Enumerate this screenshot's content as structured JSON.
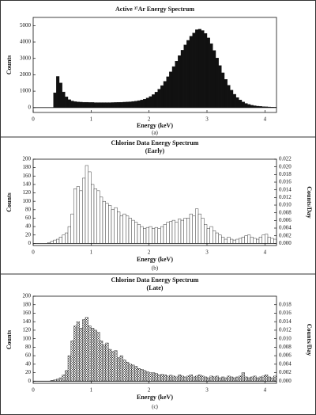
{
  "chart_data": [
    {
      "type": "histogram",
      "title": "Active ³⁷Ar Energy Spectrum",
      "caption": "(a)",
      "xlabel": "Energy (keV)",
      "ylabel": "Counts",
      "color": "#111111",
      "bins": [
        0.3,
        0.35,
        0.4,
        0.45,
        0.5,
        0.55,
        0.6,
        0.65,
        0.7,
        0.75,
        0.8,
        0.85,
        0.9,
        0.95,
        1,
        1.05,
        1.1,
        1.15,
        1.2,
        1.25,
        1.3,
        1.35,
        1.4,
        1.45,
        1.5,
        1.55,
        1.6,
        1.65,
        1.7,
        1.75,
        1.8,
        1.85,
        1.9,
        1.95,
        2,
        2.05,
        2.1,
        2.15,
        2.2,
        2.25,
        2.3,
        2.35,
        2.4,
        2.45,
        2.5,
        2.55,
        2.6,
        2.65,
        2.7,
        2.75,
        2.8,
        2.85,
        2.9,
        2.95,
        3,
        3.05,
        3.1,
        3.15,
        3.2,
        3.25,
        3.3,
        3.35,
        3.4,
        3.45,
        3.5,
        3.55,
        3.6,
        3.65,
        3.7,
        3.75,
        3.8,
        3.85,
        3.9,
        3.95,
        4,
        4.05,
        4.1,
        4.15,
        4.2
      ],
      "values": [
        0,
        900,
        1900,
        1500,
        950,
        650,
        480,
        400,
        360,
        340,
        330,
        320,
        320,
        310,
        310,
        300,
        300,
        300,
        300,
        300,
        300,
        305,
        310,
        315,
        320,
        330,
        340,
        350,
        370,
        390,
        420,
        460,
        510,
        580,
        670,
        790,
        940,
        1120,
        1340,
        1600,
        1880,
        2180,
        2500,
        2830,
        3170,
        3500,
        3820,
        4100,
        4350,
        4550,
        4750,
        4780,
        4700,
        4520,
        4250,
        3900,
        3480,
        3020,
        2560,
        2120,
        1720,
        1360,
        1060,
        810,
        610,
        460,
        340,
        250,
        190,
        140,
        110,
        85,
        70,
        55,
        45,
        35,
        25,
        20
      ],
      "xlim": [
        0,
        4.2
      ],
      "xticks": [
        0,
        1,
        2,
        3,
        4
      ],
      "ylim": [
        -300,
        5500
      ],
      "yticks": [
        0,
        1000,
        2000,
        3000,
        4000,
        5000
      ]
    },
    {
      "type": "histogram",
      "title": "Chlorine Data Energy Spectrum",
      "subtitle": "(Early)",
      "caption": "(b)",
      "xlabel": "Energy (keV)",
      "ylabel": "Counts",
      "y2label": "Counts/Day",
      "color": "#ffffff",
      "bins": [
        0.2,
        0.25,
        0.3,
        0.35,
        0.4,
        0.45,
        0.5,
        0.55,
        0.6,
        0.65,
        0.7,
        0.75,
        0.8,
        0.85,
        0.9,
        0.95,
        1,
        1.05,
        1.1,
        1.15,
        1.2,
        1.25,
        1.3,
        1.35,
        1.4,
        1.45,
        1.5,
        1.55,
        1.6,
        1.65,
        1.7,
        1.75,
        1.8,
        1.85,
        1.9,
        1.95,
        2,
        2.05,
        2.1,
        2.15,
        2.2,
        2.25,
        2.3,
        2.35,
        2.4,
        2.45,
        2.5,
        2.55,
        2.6,
        2.65,
        2.7,
        2.75,
        2.8,
        2.85,
        2.9,
        2.95,
        3,
        3.05,
        3.1,
        3.15,
        3.2,
        3.25,
        3.3,
        3.35,
        3.4,
        3.45,
        3.5,
        3.55,
        3.6,
        3.65,
        3.7,
        3.75,
        3.8,
        3.85,
        3.9,
        3.95,
        4,
        4.05,
        4.1,
        4.15,
        4.2
      ],
      "values": [
        0,
        2,
        5,
        8,
        10,
        15,
        20,
        25,
        40,
        70,
        130,
        135,
        125,
        155,
        185,
        170,
        140,
        130,
        125,
        110,
        100,
        95,
        90,
        80,
        85,
        75,
        65,
        70,
        65,
        60,
        55,
        50,
        45,
        40,
        35,
        38,
        40,
        35,
        38,
        35,
        40,
        45,
        50,
        52,
        55,
        50,
        58,
        55,
        60,
        60,
        70,
        65,
        82,
        70,
        60,
        45,
        35,
        40,
        30,
        25,
        20,
        15,
        10,
        15,
        10,
        8,
        10,
        12,
        15,
        18,
        20,
        15,
        12,
        10,
        15,
        20,
        22,
        15,
        12,
        10
      ],
      "xlim": [
        0,
        4.2
      ],
      "xticks": [
        0,
        1,
        2,
        3,
        4
      ],
      "ylim": [
        -5,
        200
      ],
      "yticks": [
        0,
        20,
        40,
        60,
        80,
        100,
        120,
        140,
        160,
        180,
        200
      ],
      "y2lim": [
        -0.00055,
        0.022
      ],
      "y2ticks": [
        {
          "value": 0,
          "label": "0.000"
        },
        {
          "value": 0.002,
          "label": "0.002"
        },
        {
          "value": 0.004,
          "label": "0.004"
        },
        {
          "value": 0.006,
          "label": "0.006"
        },
        {
          "value": 0.008,
          "label": "0.008"
        },
        {
          "value": 0.01,
          "label": "0.010"
        },
        {
          "value": 0.012,
          "label": "0.012"
        },
        {
          "value": 0.014,
          "label": "0.014"
        },
        {
          "value": 0.016,
          "label": "0.016"
        },
        {
          "value": 0.018,
          "label": "0.018"
        },
        {
          "value": 0.02,
          "label": "0.020"
        },
        {
          "value": 0.022,
          "label": "0.022"
        }
      ]
    },
    {
      "type": "histogram",
      "title": "Chlorine Data Energy Spectrum",
      "subtitle": "(Late)",
      "caption": "(c)",
      "xlabel": "Energy (keV)",
      "ylabel": "Counts",
      "y2label": "Counts/Day",
      "color": "#ffffff",
      "pattern": "crosshatch",
      "bins": [
        0.2,
        0.25,
        0.3,
        0.35,
        0.4,
        0.45,
        0.5,
        0.55,
        0.6,
        0.65,
        0.7,
        0.75,
        0.8,
        0.85,
        0.9,
        0.95,
        1,
        1.05,
        1.1,
        1.15,
        1.2,
        1.25,
        1.3,
        1.35,
        1.4,
        1.45,
        1.5,
        1.55,
        1.6,
        1.65,
        1.7,
        1.75,
        1.8,
        1.85,
        1.9,
        1.95,
        2,
        2.05,
        2.1,
        2.15,
        2.2,
        2.25,
        2.3,
        2.35,
        2.4,
        2.45,
        2.5,
        2.55,
        2.6,
        2.65,
        2.7,
        2.75,
        2.8,
        2.85,
        2.9,
        2.95,
        3,
        3.05,
        3.1,
        3.15,
        3.2,
        3.25,
        3.3,
        3.35,
        3.4,
        3.45,
        3.5,
        3.55,
        3.6,
        3.65,
        3.7,
        3.75,
        3.8,
        3.85,
        3.9,
        3.95,
        4,
        4.05,
        4.1,
        4.15,
        4.2
      ],
      "values": [
        0,
        0,
        2,
        3,
        5,
        8,
        15,
        25,
        60,
        95,
        130,
        140,
        125,
        145,
        150,
        130,
        125,
        120,
        115,
        95,
        85,
        90,
        75,
        70,
        72,
        55,
        60,
        50,
        45,
        40,
        38,
        35,
        30,
        28,
        25,
        22,
        20,
        20,
        18,
        15,
        16,
        15,
        12,
        14,
        12,
        10,
        15,
        12,
        10,
        12,
        15,
        10,
        12,
        15,
        12,
        10,
        8,
        12,
        10,
        12,
        8,
        10,
        8,
        12,
        10,
        8,
        10,
        12,
        20,
        10,
        8,
        10,
        12,
        8,
        10,
        12,
        15,
        10,
        8,
        12
      ],
      "xlim": [
        0,
        4.2
      ],
      "xticks": [
        0,
        1,
        2,
        3,
        4
      ],
      "ylim": [
        -5,
        200
      ],
      "yticks": [
        0,
        20,
        40,
        60,
        80,
        100,
        120,
        140,
        160,
        180,
        200
      ],
      "y2lim": [
        -0.0005,
        0.02
      ],
      "y2ticks": [
        {
          "value": 0,
          "label": "0.000"
        },
        {
          "value": 0.002,
          "label": "0.002"
        },
        {
          "value": 0.004,
          "label": "0.004"
        },
        {
          "value": 0.006,
          "label": "0.006"
        },
        {
          "value": 0.008,
          "label": "0.008"
        },
        {
          "value": 0.01,
          "label": "0.010"
        },
        {
          "value": 0.012,
          "label": "0.012"
        },
        {
          "value": 0.014,
          "label": "0.014"
        },
        {
          "value": 0.016,
          "label": "0.016"
        },
        {
          "value": 0.018,
          "label": "0.018"
        }
      ]
    }
  ]
}
